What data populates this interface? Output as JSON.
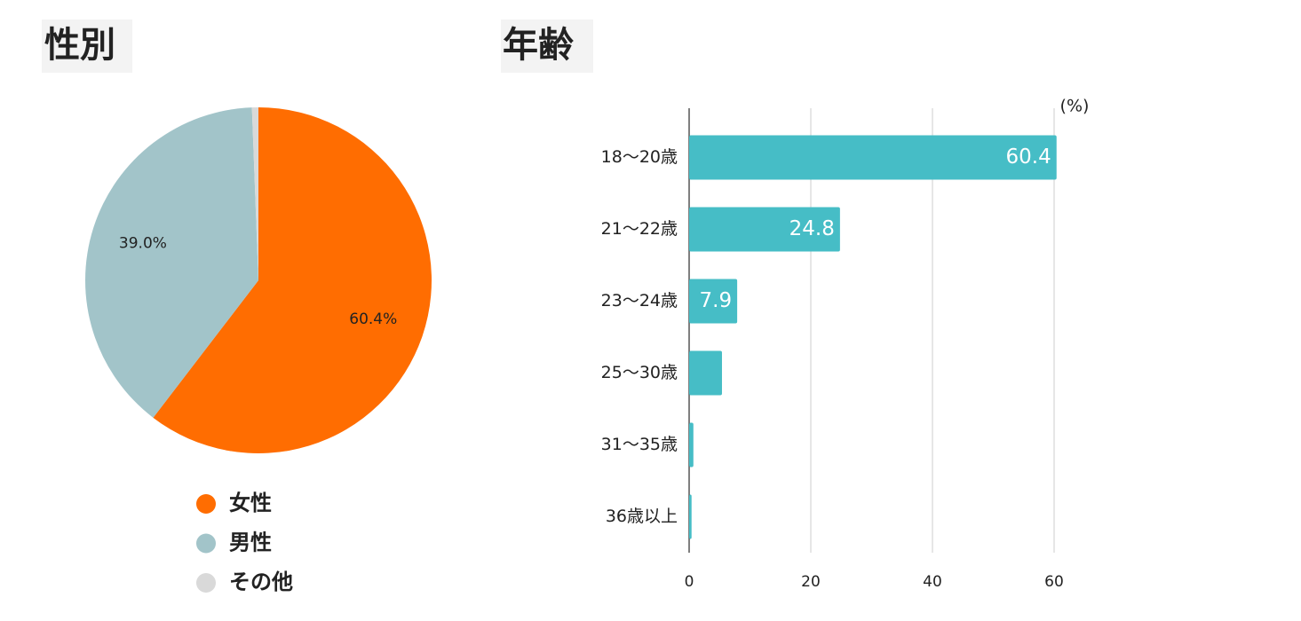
{
  "chart_data": [
    {
      "type": "pie",
      "title": "性別",
      "categories": [
        "女性",
        "男性",
        "その他"
      ],
      "values": [
        60.4,
        39.0,
        0.6
      ],
      "value_labels": [
        "60.4%",
        "39.0%",
        null
      ],
      "colors": [
        "#ff6d01",
        "#a2c4c9",
        "#d9d9d9"
      ],
      "legend": "bottom"
    },
    {
      "type": "hbar",
      "title": "年齢",
      "x_label": "(%)",
      "categories": [
        "18〜20歳",
        "21〜22歳",
        "23〜24歳",
        "25〜30歳",
        "31〜35歳",
        "36歳以上"
      ],
      "values": [
        60.4,
        24.8,
        7.9,
        5.4,
        0.7,
        0.4
      ],
      "color": "#46bdc6",
      "xlim": [
        0,
        60
      ],
      "xticks": [
        0,
        20,
        40,
        60
      ],
      "grid": true
    }
  ]
}
